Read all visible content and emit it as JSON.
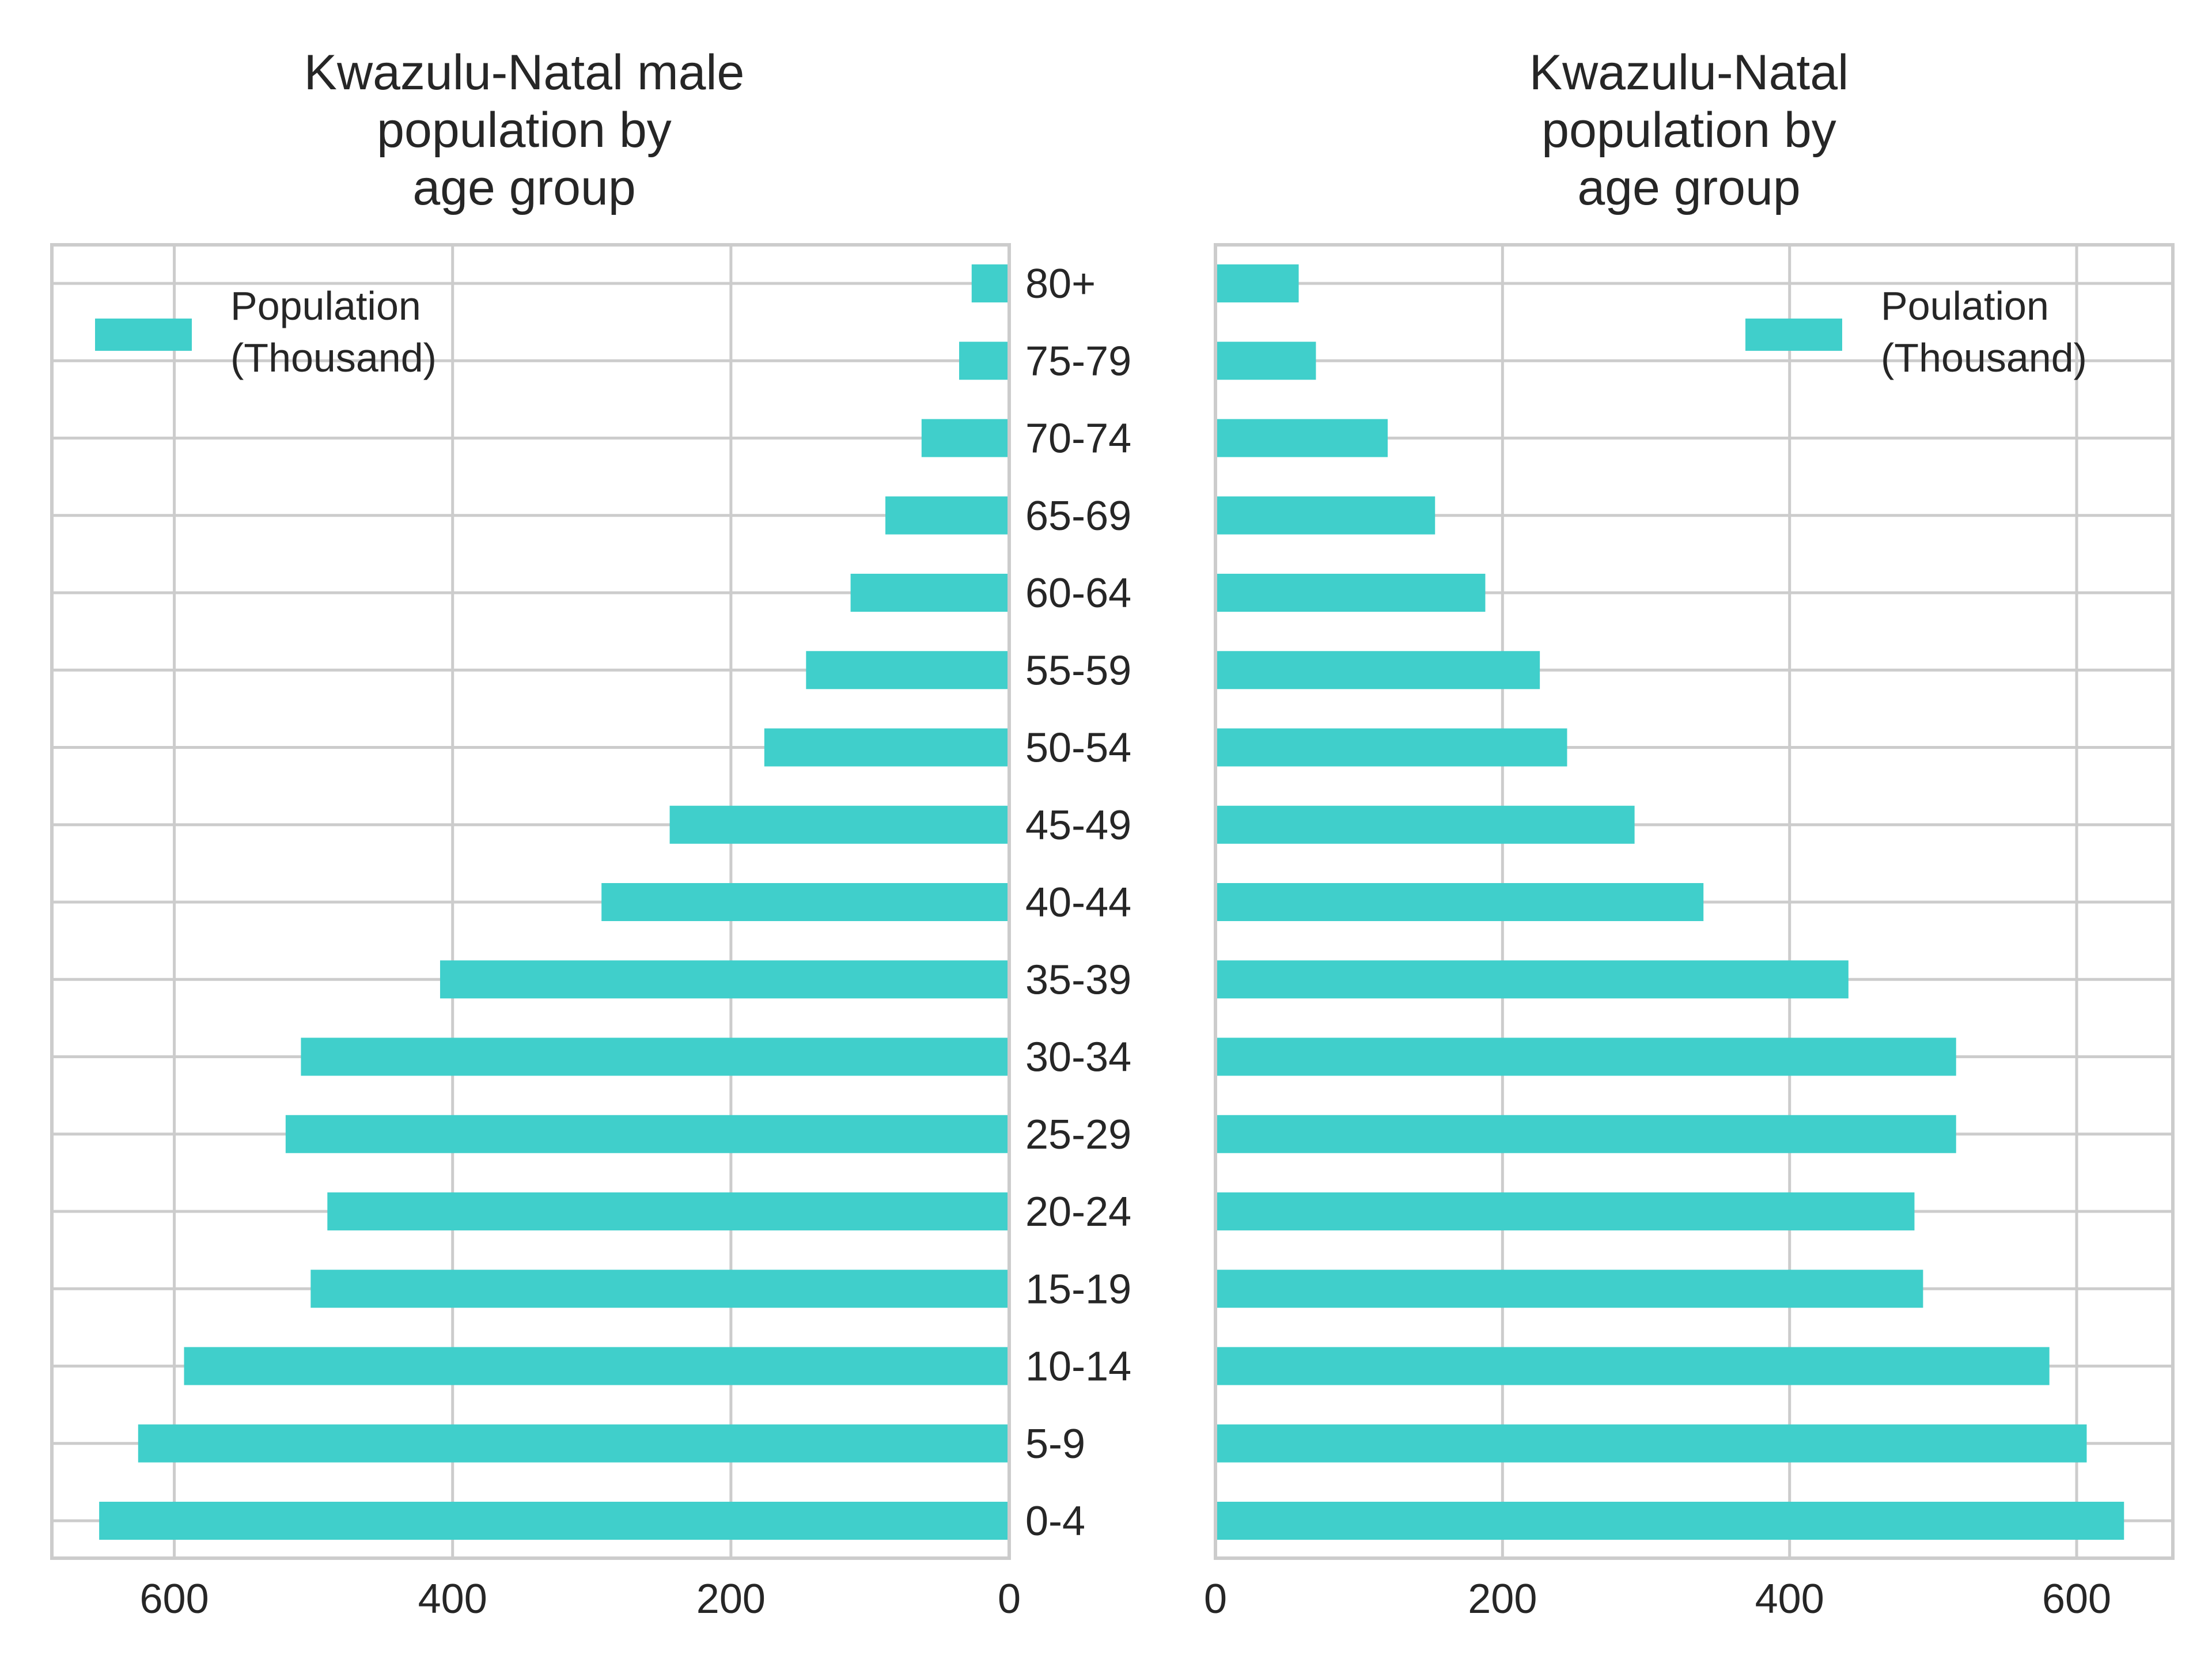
{
  "chart_data": [
    {
      "type": "bar",
      "orientation": "horizontal",
      "direction": "left",
      "title": "Kwazulu-Natal male\npopulation by\nage group",
      "categories": [
        "0-4",
        "5-9",
        "10-14",
        "15-19",
        "20-24",
        "25-29",
        "30-34",
        "35-39",
        "40-44",
        "45-49",
        "50-54",
        "55-59",
        "60-64",
        "65-69",
        "70-74",
        "75-79",
        "80+"
      ],
      "series": [
        {
          "name": "Population\n(Thousand)",
          "values": [
            654,
            626,
            593,
            502,
            490,
            520,
            509,
            409,
            293,
            244,
            176,
            146,
            114,
            89,
            63,
            36,
            27
          ]
        }
      ],
      "xlim": [
        688,
        0
      ],
      "xticks": [
        600,
        400,
        200,
        0
      ],
      "legend_loc": "top-left",
      "grid": true,
      "color": "#40cfcb"
    },
    {
      "type": "bar",
      "orientation": "horizontal",
      "direction": "right",
      "title": "Kwazulu-Natal\npopulation by\nage group",
      "categories": [
        "0-4",
        "5-9",
        "10-14",
        "15-19",
        "20-24",
        "25-29",
        "30-34",
        "35-39",
        "40-44",
        "45-49",
        "50-54",
        "55-59",
        "60-64",
        "65-69",
        "70-74",
        "75-79",
        "80+"
      ],
      "series": [
        {
          "name": "Poulation\n(Thousand)",
          "values": [
            633,
            607,
            581,
            493,
            487,
            516,
            516,
            441,
            340,
            292,
            245,
            226,
            188,
            153,
            120,
            70,
            58
          ]
        }
      ],
      "xlim": [
        0,
        667
      ],
      "xticks": [
        0,
        200,
        400,
        600
      ],
      "legend_loc": "top-right",
      "grid": true,
      "color": "#40cfcb"
    }
  ]
}
